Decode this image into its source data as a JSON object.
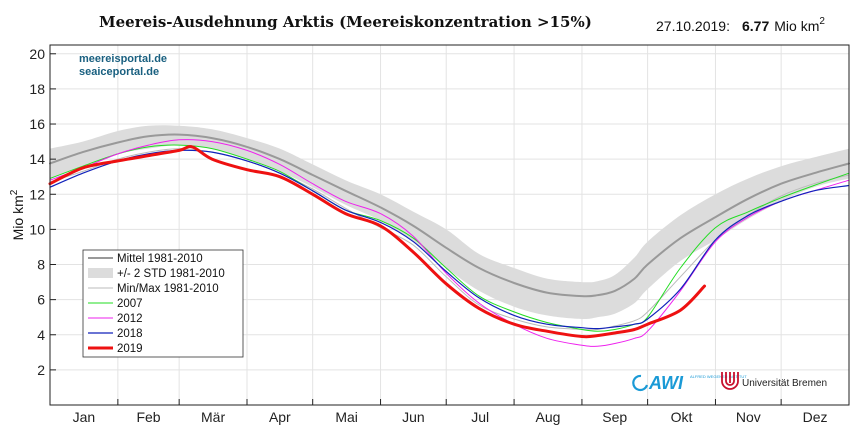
{
  "chart_data": {
    "type": "line",
    "title": "Meereis-Ausdehnung Arktis (Meereiskonzentration >15%)",
    "date": "27.10.2019:",
    "value_text": "6.77",
    "value_unit": "Mio km",
    "value_unit_sup": "2",
    "ylabel": "Mio km",
    "ylabel_sup": "2",
    "ylim": [
      0,
      20.5
    ],
    "yticks": [
      "2",
      "4",
      "6",
      "8",
      "10",
      "12",
      "14",
      "16",
      "18",
      "20"
    ],
    "x_months": [
      "Jan",
      "Feb",
      "Mär",
      "Apr",
      "Mai",
      "Jun",
      "Jul",
      "Aug",
      "Sep",
      "Okt",
      "Nov",
      "Dez"
    ],
    "xlim_day": [
      1,
      366
    ],
    "grid": true,
    "legend_position": "center-left",
    "watermark": [
      "meereisportal.de",
      "seaiceportal.de"
    ],
    "logos": {
      "awi": "AWI",
      "awi_sub": "ALFRED WEGENER INSTITUT",
      "bremen": "Universität Bremen"
    },
    "band": {
      "name": "+/- 2 STD 1981-2010",
      "color": "#dcdcdc",
      "x": [
        1,
        16,
        32,
        46,
        60,
        75,
        91,
        106,
        121,
        136,
        152,
        167,
        182,
        197,
        213,
        228,
        244,
        251,
        259,
        268,
        274,
        289,
        305,
        320,
        335,
        350,
        366
      ],
      "upper": [
        14.6,
        15.0,
        15.6,
        15.9,
        15.9,
        15.7,
        15.2,
        14.6,
        13.7,
        12.8,
        12.0,
        11.0,
        10.0,
        8.6,
        7.8,
        7.2,
        7.0,
        7.05,
        7.4,
        8.4,
        9.3,
        10.8,
        12.0,
        12.9,
        13.6,
        14.1,
        14.6
      ],
      "lower": [
        12.9,
        13.6,
        14.3,
        14.6,
        14.8,
        14.6,
        14.0,
        13.3,
        12.4,
        11.4,
        10.5,
        9.3,
        7.8,
        6.5,
        5.6,
        5.1,
        4.9,
        5.0,
        5.2,
        5.8,
        6.6,
        8.2,
        9.4,
        10.6,
        11.6,
        12.4,
        12.9
      ]
    },
    "series": [
      {
        "name": "Mittel 1981-2010",
        "color": "#999999",
        "width": 2,
        "x": [
          1,
          16,
          32,
          46,
          60,
          75,
          91,
          106,
          121,
          136,
          152,
          167,
          182,
          197,
          213,
          228,
          244,
          251,
          259,
          268,
          274,
          289,
          305,
          320,
          335,
          350,
          366
        ],
        "y": [
          13.75,
          14.4,
          14.95,
          15.3,
          15.4,
          15.2,
          14.7,
          14.0,
          13.1,
          12.2,
          11.25,
          10.2,
          8.95,
          7.8,
          6.95,
          6.4,
          6.2,
          6.25,
          6.5,
          7.2,
          8.0,
          9.5,
          10.7,
          11.75,
          12.6,
          13.2,
          13.75
        ]
      },
      {
        "name": "Min/Max 1981-2010",
        "color": "#bbbbbb",
        "width": 1,
        "x": [
          1,
          16,
          32,
          46,
          60,
          75,
          91,
          106,
          121,
          136,
          152,
          167,
          182,
          197,
          213,
          228,
          244,
          251,
          259,
          268,
          274,
          289,
          305,
          320,
          335,
          350,
          366
        ],
        "y": [
          12.7,
          13.3,
          14.0,
          14.4,
          14.6,
          14.4,
          13.9,
          13.2,
          12.3,
          11.2,
          10.1,
          9.1,
          7.3,
          5.7,
          4.9,
          4.45,
          4.3,
          4.3,
          4.5,
          4.8,
          5.3,
          7.3,
          9.4,
          10.8,
          11.9,
          12.6,
          13.1
        ]
      },
      {
        "name": "2007",
        "color": "#22dd22",
        "width": 1,
        "x": [
          1,
          16,
          32,
          46,
          60,
          75,
          91,
          106,
          121,
          136,
          152,
          167,
          182,
          197,
          213,
          228,
          244,
          251,
          259,
          268,
          274,
          289,
          305,
          320,
          335,
          350,
          366
        ],
        "y": [
          12.9,
          13.6,
          14.3,
          14.7,
          14.8,
          14.6,
          14.0,
          13.3,
          12.2,
          11.1,
          10.5,
          9.5,
          7.8,
          6.2,
          5.3,
          4.7,
          4.3,
          4.2,
          4.3,
          4.6,
          5.0,
          7.8,
          10.1,
          11.0,
          11.8,
          12.5,
          13.2
        ]
      },
      {
        "name": "2012",
        "color": "#ee22ee",
        "width": 1,
        "x": [
          1,
          16,
          32,
          46,
          60,
          75,
          91,
          106,
          121,
          136,
          152,
          167,
          182,
          197,
          213,
          228,
          244,
          251,
          259,
          268,
          274,
          289,
          305,
          320,
          335,
          350,
          366
        ],
        "y": [
          12.8,
          13.5,
          14.3,
          14.8,
          15.1,
          15.0,
          14.5,
          13.7,
          12.6,
          11.6,
          10.9,
          9.6,
          7.5,
          5.8,
          4.6,
          3.8,
          3.4,
          3.35,
          3.5,
          3.8,
          4.2,
          6.5,
          9.3,
          10.7,
          11.6,
          12.2,
          12.8
        ]
      },
      {
        "name": "2018",
        "color": "#1122bb",
        "width": 1.2,
        "x": [
          1,
          16,
          32,
          46,
          60,
          75,
          91,
          106,
          121,
          136,
          152,
          167,
          182,
          197,
          213,
          228,
          244,
          251,
          259,
          268,
          274,
          289,
          305,
          320,
          335,
          350,
          366
        ],
        "y": [
          12.4,
          13.2,
          13.9,
          14.3,
          14.5,
          14.4,
          13.9,
          13.2,
          12.2,
          11.1,
          10.4,
          9.3,
          7.6,
          6.1,
          5.1,
          4.6,
          4.4,
          4.35,
          4.45,
          4.6,
          4.9,
          6.6,
          9.4,
          10.8,
          11.6,
          12.2,
          12.5
        ]
      },
      {
        "name": "2019",
        "color": "#ee1111",
        "width": 3,
        "x": [
          1,
          16,
          32,
          46,
          60,
          66,
          75,
          91,
          106,
          121,
          136,
          152,
          167,
          182,
          197,
          213,
          228,
          244,
          251,
          259,
          268,
          274,
          289,
          300
        ],
        "y": [
          12.6,
          13.5,
          13.9,
          14.2,
          14.5,
          14.7,
          14.0,
          13.4,
          13.0,
          12.0,
          10.9,
          10.2,
          8.7,
          6.9,
          5.5,
          4.6,
          4.2,
          3.9,
          3.95,
          4.1,
          4.3,
          4.6,
          5.4,
          6.77
        ]
      }
    ]
  }
}
